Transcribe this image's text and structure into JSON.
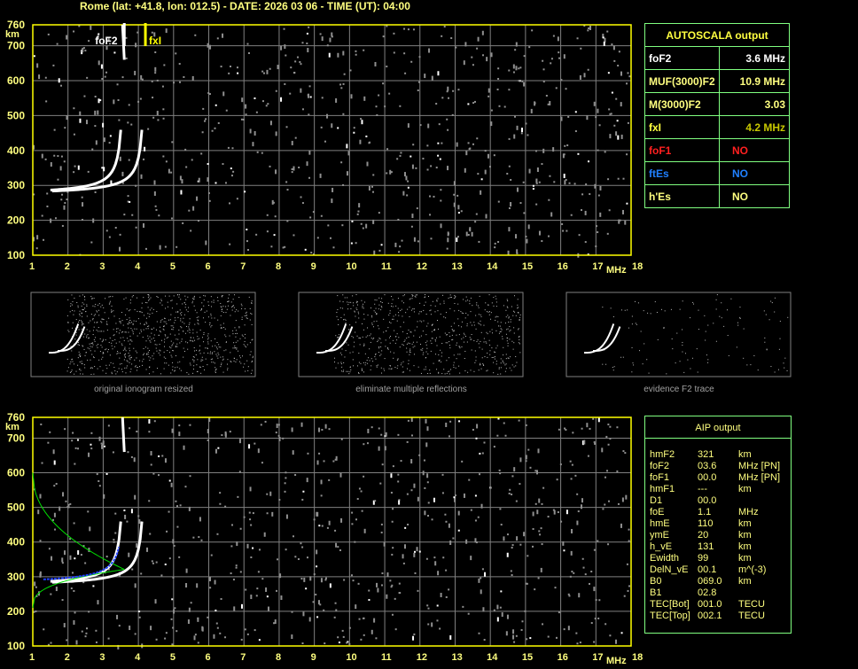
{
  "header": {
    "title": "Rome (lat: +41.8, lon: 012.5) - DATE: 2026 03 06 - TIME (UT): 04:00"
  },
  "autoscala": {
    "title": "AUTOSCALA output",
    "rows": [
      {
        "label": "foF2",
        "value": "3.6 MHz",
        "color": "#ffffff",
        "vcolor": "#ffffff"
      },
      {
        "label": "MUF(3000)F2",
        "value": "10.9 MHz",
        "color": "#ffff80",
        "vcolor": "#ffff80"
      },
      {
        "label": "M(3000)F2",
        "value": "3.03",
        "color": "#ffff80",
        "vcolor": "#ffff80"
      },
      {
        "label": "fxI",
        "value": "4.2 MHz",
        "color": "#ffff40",
        "vcolor": "#c8c800"
      },
      {
        "label": "foF1",
        "value": "NO",
        "color": "#ff2020",
        "vcolor": "#ff2020"
      },
      {
        "label": "ftEs",
        "value": "NO",
        "color": "#2080ff",
        "vcolor": "#2080ff"
      },
      {
        "label": "h'Es",
        "value": "NO",
        "color": "#ffff80",
        "vcolor": "#ffff80"
      }
    ]
  },
  "aip": {
    "title": "AIP output",
    "rows": [
      [
        "hmF2",
        "321",
        "km"
      ],
      [
        "foF2",
        "03.6",
        "MHz  [PN]"
      ],
      [
        "foF1",
        "00.0",
        "MHz   [PN]"
      ],
      [
        "hmF1",
        "---",
        "km"
      ],
      [
        "D1",
        "00.0",
        ""
      ],
      [
        "foE",
        "1.1",
        "MHz"
      ],
      [
        "hmE",
        "110",
        "km"
      ],
      [
        "ymE",
        "20",
        "km"
      ],
      [
        "h_vE",
        "131",
        "km"
      ],
      [
        "Ewidth",
        "99",
        "km"
      ],
      [
        "DelN_vE",
        "00.1",
        "m^(-3)"
      ],
      [
        "B0",
        "069.0",
        "km"
      ],
      [
        "B1",
        "02.8",
        ""
      ],
      [
        "TEC[Bot]",
        "001.0",
        "TECU"
      ],
      [
        "TEC[Top]",
        "002.1",
        "TECU"
      ]
    ]
  },
  "captions": [
    "original ionogram resized",
    "eliminate multiple reflections",
    "evidence F2 trace"
  ],
  "chart_data": [
    {
      "type": "scatter",
      "xlabel": "MHz",
      "ylabel": "km",
      "xlim": [
        1,
        18
      ],
      "ylim": [
        100,
        760
      ],
      "xticks": [
        "1",
        "2",
        "3",
        "4",
        "5",
        "6",
        "7",
        "8",
        "9",
        "10",
        "11",
        "12",
        "13",
        "14",
        "15",
        "16",
        "17",
        "18"
      ],
      "yticks": [
        "100",
        "200",
        "300",
        "400",
        "500",
        "600",
        "700",
        "760"
      ],
      "annotations": [
        {
          "text": "foF2",
          "x": 3.6,
          "color": "#ffffff"
        },
        {
          "text": "fxI",
          "x": 4.2,
          "color": "#ffff00"
        }
      ],
      "grid": true
    },
    {
      "type": "scatter",
      "xlabel": "MHz",
      "ylabel": "km",
      "xlim": [
        1,
        18
      ],
      "ylim": [
        100,
        760
      ],
      "grid": true,
      "profile_color": "#00e000",
      "fit_color": "#2040ff"
    }
  ],
  "colors": {
    "frame": "#ffff00",
    "grid": "#808080",
    "axis_text": "#ffff80"
  }
}
